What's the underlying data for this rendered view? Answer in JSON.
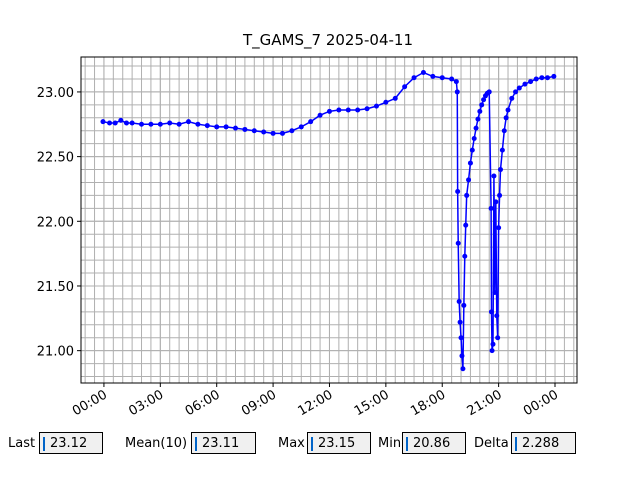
{
  "chart_data": {
    "type": "line",
    "title": "T_GAMS_7 2025-04-11",
    "x": [
      -0.05,
      0.3,
      0.6,
      0.9,
      1.2,
      1.5,
      2,
      2.5,
      3,
      3.5,
      4,
      4.5,
      5,
      5.5,
      6,
      6.5,
      7,
      7.5,
      8,
      8.5,
      9,
      9.5,
      10,
      10.5,
      11,
      11.5,
      12,
      12.5,
      13,
      13.5,
      14,
      14.5,
      15,
      15.5,
      16,
      16.5,
      17,
      17.5,
      18,
      18.5,
      18.75,
      18.8,
      18.82,
      18.85,
      18.9,
      18.95,
      19.0,
      19.05,
      19.1,
      19.15,
      19.2,
      19.25,
      19.3,
      19.4,
      19.5,
      19.6,
      19.7,
      19.8,
      19.9,
      20.0,
      20.1,
      20.2,
      20.3,
      20.4,
      20.5,
      20.6,
      20.62,
      20.65,
      20.7,
      20.75,
      20.8,
      20.85,
      20.9,
      20.95,
      21.0,
      21.05,
      21.1,
      21.2,
      21.3,
      21.4,
      21.5,
      21.7,
      21.9,
      22.1,
      22.4,
      22.7,
      23.0,
      23.3,
      23.6,
      23.94
    ],
    "series": [
      {
        "color": "#0000ff",
        "values": [
          22.77,
          22.76,
          22.76,
          22.78,
          22.76,
          22.76,
          22.75,
          22.75,
          22.75,
          22.76,
          22.75,
          22.77,
          22.75,
          22.74,
          22.73,
          22.73,
          22.72,
          22.71,
          22.7,
          22.69,
          22.68,
          22.68,
          22.7,
          22.73,
          22.77,
          22.82,
          22.85,
          22.86,
          22.86,
          22.86,
          22.87,
          22.89,
          22.92,
          22.95,
          23.04,
          23.11,
          23.15,
          23.12,
          23.11,
          23.1,
          23.08,
          23.0,
          22.23,
          21.83,
          21.38,
          21.22,
          21.1,
          20.96,
          20.86,
          21.35,
          21.73,
          21.97,
          22.2,
          22.32,
          22.45,
          22.55,
          22.64,
          22.72,
          22.79,
          22.85,
          22.9,
          22.94,
          22.97,
          22.99,
          23.0,
          22.1,
          21.3,
          21.0,
          21.05,
          22.35,
          21.45,
          22.15,
          21.27,
          21.1,
          21.95,
          22.2,
          22.4,
          22.55,
          22.7,
          22.8,
          22.86,
          22.95,
          23.0,
          23.03,
          23.06,
          23.08,
          23.1,
          23.11,
          23.11,
          23.12
        ]
      }
    ],
    "xlim": [
      -1.22,
      25.17
    ],
    "xticks": [
      {
        "value": 0,
        "label": "00:00"
      },
      {
        "value": 3,
        "label": "03:00"
      },
      {
        "value": 6,
        "label": "06:00"
      },
      {
        "value": 9,
        "label": "09:00"
      },
      {
        "value": 12,
        "label": "12:00"
      },
      {
        "value": 15,
        "label": "15:00"
      },
      {
        "value": 18,
        "label": "18:00"
      },
      {
        "value": 21,
        "label": "21:00"
      },
      {
        "value": 24,
        "label": "00:00"
      }
    ],
    "ylim": [
      20.75,
      23.27
    ],
    "yticks": [
      {
        "value": 21,
        "label": "21.00"
      },
      {
        "value": 21.5,
        "label": "21.50"
      },
      {
        "value": 22,
        "label": "22.00"
      },
      {
        "value": 22.5,
        "label": "22.50"
      },
      {
        "value": 23,
        "label": "23.00"
      }
    ],
    "grid": true,
    "minor_grid": true,
    "markers": true
  },
  "stats": [
    {
      "label": "Last",
      "value": "23.12"
    },
    {
      "label": "Mean(10)",
      "value": "23.11"
    },
    {
      "label": "Max",
      "value": "23.15"
    },
    {
      "label": "Min",
      "value": "20.86"
    },
    {
      "label": "Delta",
      "value": "2.288"
    }
  ]
}
